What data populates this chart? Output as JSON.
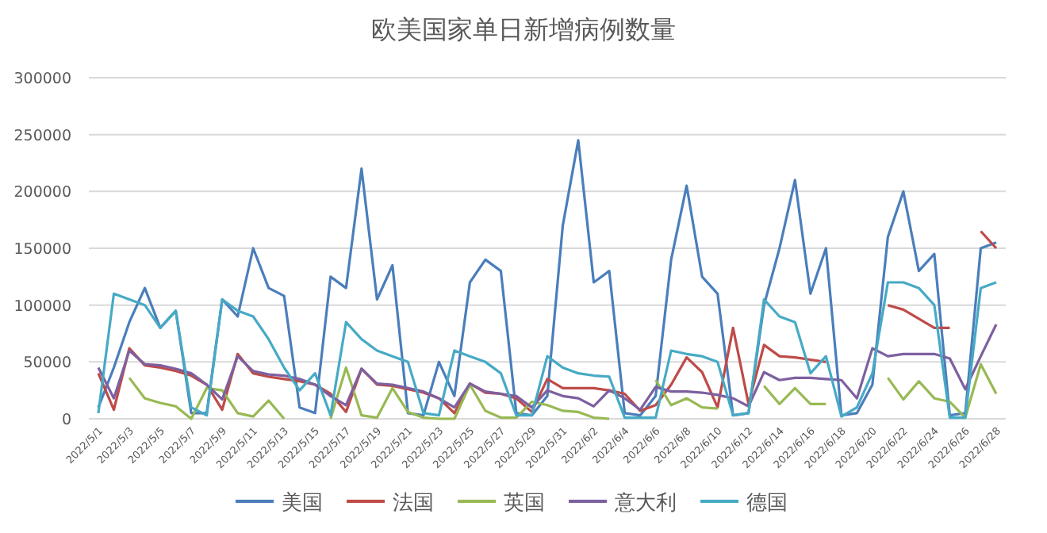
{
  "chart_data": {
    "type": "line",
    "title": "欧美国家单日新增病例数量",
    "categories": [
      "2022/5/1",
      null,
      "2022/5/3",
      null,
      "2022/5/5",
      null,
      "2022/5/7",
      null,
      "2022/5/9",
      null,
      "2022/5/11",
      null,
      "2022/5/13",
      null,
      "2022/5/15",
      null,
      "2022/5/17",
      null,
      "2022/5/19",
      null,
      "2022/5/21",
      null,
      "2022/5/23",
      null,
      "2022/5/25",
      null,
      "2022/5/27",
      null,
      "2022/5/29",
      null,
      "2022/5/31",
      null,
      "2022/6/2",
      null,
      "2022/6/4",
      null,
      "2022/6/6",
      null,
      "2022/6/8",
      null,
      "2022/6/10",
      null,
      "2022/6/12",
      null,
      "2022/6/14",
      null,
      "2022/6/16",
      null,
      "2022/6/18",
      null,
      "2022/6/20",
      null,
      "2022/6/22",
      null,
      "2022/6/24",
      null,
      "2022/6/26",
      null,
      "2022/6/28"
    ],
    "series": [
      {
        "name": "美国",
        "color": "#4a7ebb",
        "values": [
          10000,
          45000,
          85000,
          115000,
          80000,
          95000,
          5000,
          5000,
          105000,
          90000,
          150000,
          115000,
          108000,
          10000,
          5000,
          125000,
          115000,
          220000,
          105000,
          135000,
          5000,
          3000,
          50000,
          20000,
          120000,
          140000,
          130000,
          5000,
          3000,
          20000,
          170000,
          245000,
          120000,
          130000,
          5000,
          3000,
          20000,
          140000,
          205000,
          125000,
          110000,
          3000,
          5000,
          100000,
          150000,
          210000,
          110000,
          150000,
          3000,
          5000,
          30000,
          160000,
          200000,
          130000,
          145000,
          3000,
          5000,
          150000,
          155000
        ]
      },
      {
        "name": "法国",
        "color": "#be4b48",
        "values": [
          40000,
          8000,
          62000,
          47000,
          45000,
          42000,
          38000,
          30000,
          8000,
          57000,
          40000,
          37000,
          35000,
          33000,
          30000,
          22000,
          6000,
          44000,
          30000,
          29000,
          26000,
          23000,
          18000,
          5000,
          31000,
          23000,
          22000,
          18000,
          6000,
          35000,
          27000,
          27000,
          27000,
          25000,
          22000,
          7000,
          12000,
          30000,
          54000,
          41000,
          10000,
          80000,
          13000,
          65000,
          55000,
          54000,
          52000,
          50000,
          null,
          null,
          null,
          100000,
          96000,
          88000,
          80000,
          80000,
          null,
          165000,
          150000
        ]
      },
      {
        "name": "英国",
        "color": "#98b954",
        "values": [
          null,
          null,
          36000,
          18000,
          14000,
          11000,
          0,
          27000,
          25000,
          5000,
          2000,
          16000,
          0,
          null,
          null,
          0,
          45000,
          3000,
          1000,
          27000,
          6000,
          1000,
          0,
          0,
          30000,
          7000,
          1000,
          1000,
          15000,
          12000,
          7000,
          6000,
          1000,
          0,
          null,
          null,
          34000,
          12000,
          18000,
          10000,
          9000,
          null,
          null,
          29000,
          13000,
          27000,
          13000,
          13000,
          null,
          null,
          null,
          36000,
          17000,
          33000,
          18000,
          15000,
          1000,
          48000,
          22000
        ]
      },
      {
        "name": "意大利",
        "color": "#7d60a0",
        "values": [
          45000,
          18000,
          60000,
          48000,
          47000,
          44000,
          40000,
          30000,
          17000,
          55000,
          42000,
          39000,
          38000,
          35000,
          30000,
          20000,
          12000,
          44000,
          31000,
          30000,
          27000,
          24000,
          18000,
          10000,
          31000,
          24000,
          22000,
          20000,
          10000,
          25000,
          20000,
          18000,
          11000,
          25000,
          18000,
          8000,
          28000,
          24000,
          24000,
          23000,
          21000,
          18000,
          11000,
          41000,
          34000,
          36000,
          36000,
          35000,
          34000,
          18000,
          62000,
          55000,
          57000,
          57000,
          57000,
          53000,
          26000,
          55000,
          83000
        ]
      },
      {
        "name": "德国",
        "color": "#46aac5",
        "values": [
          5000,
          110000,
          105000,
          100000,
          80000,
          95000,
          10000,
          3000,
          105000,
          95000,
          90000,
          70000,
          45000,
          25000,
          40000,
          3000,
          85000,
          70000,
          60000,
          55000,
          50000,
          5000,
          3000,
          60000,
          55000,
          50000,
          40000,
          3000,
          3000,
          55000,
          45000,
          40000,
          38000,
          37000,
          1000,
          1000,
          1000,
          60000,
          57000,
          55000,
          50000,
          3000,
          5000,
          105000,
          90000,
          85000,
          40000,
          55000,
          2000,
          10000,
          40000,
          120000,
          120000,
          115000,
          100000,
          1000,
          1000,
          115000,
          120000
        ]
      }
    ],
    "ylim": [
      0,
      300000
    ],
    "yticks": [
      0,
      50000,
      100000,
      150000,
      200000,
      250000,
      300000
    ],
    "grid": "y",
    "legend": "bottom",
    "marker": "none",
    "line_style": "solid"
  }
}
